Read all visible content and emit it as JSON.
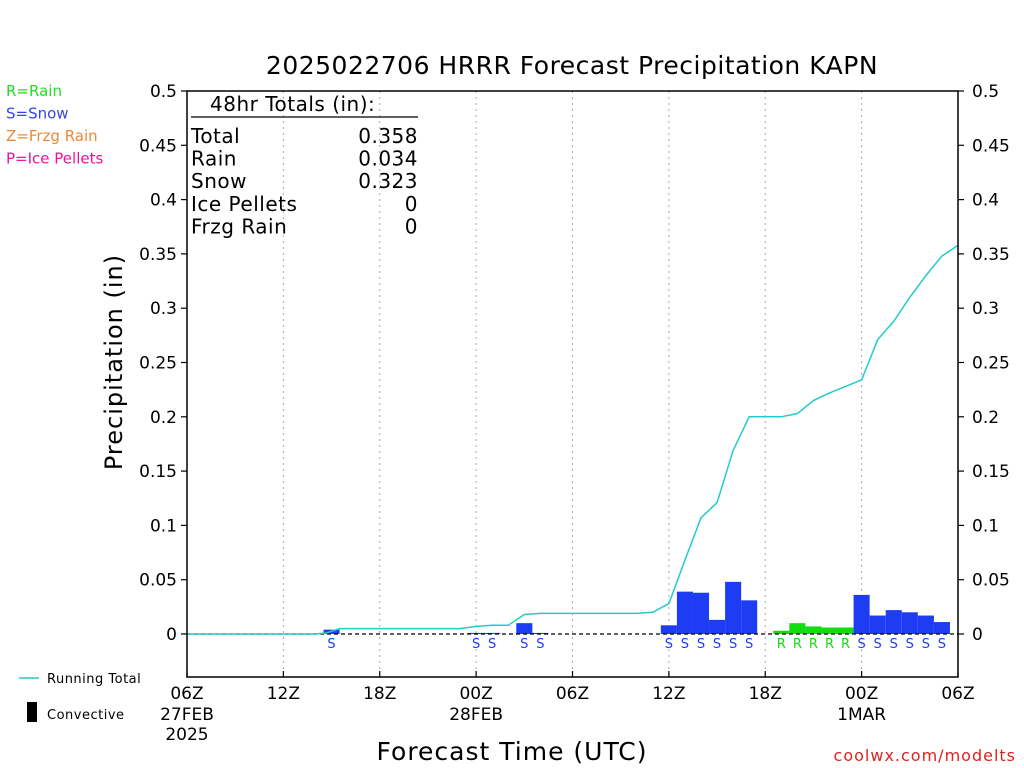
{
  "chart_data": {
    "type": "bar",
    "title": "2025022706 HRRR Forecast Precipitation KAPN",
    "xlabel": "Forecast Time (UTC)",
    "ylabel": "Precipitation (in)",
    "ylim": [
      -0.04,
      0.5
    ],
    "y_ticks": [
      0,
      0.05,
      0.1,
      0.15,
      0.2,
      0.25,
      0.3,
      0.35,
      0.4,
      0.45,
      0.5
    ],
    "y_tick_labels": [
      "0",
      "0.05",
      "0.1",
      "0.15",
      "0.2",
      "0.25",
      "0.3",
      "0.35",
      "0.4",
      "0.45",
      "0.5"
    ],
    "x_range_hours": [
      0,
      48
    ],
    "x_ticks": [
      {
        "hour": 0,
        "label": "06Z",
        "date": "27FEB",
        "year": "2025"
      },
      {
        "hour": 6,
        "label": "12Z",
        "date": "",
        "year": ""
      },
      {
        "hour": 12,
        "label": "18Z",
        "date": "",
        "year": ""
      },
      {
        "hour": 18,
        "label": "00Z",
        "date": "28FEB",
        "year": ""
      },
      {
        "hour": 24,
        "label": "06Z",
        "date": "",
        "year": ""
      },
      {
        "hour": 30,
        "label": "12Z",
        "date": "",
        "year": ""
      },
      {
        "hour": 36,
        "label": "18Z",
        "date": "",
        "year": ""
      },
      {
        "hour": 42,
        "label": "00Z",
        "date": "1MAR",
        "year": ""
      },
      {
        "hour": 48,
        "label": "06Z",
        "date": "",
        "year": ""
      }
    ],
    "grid": "vertical dotted at each 6 hours",
    "bars": [
      {
        "hour": 9,
        "value": 0.004,
        "type": "S"
      },
      {
        "hour": 18,
        "value": 0.001,
        "type": "S"
      },
      {
        "hour": 19,
        "value": 0.001,
        "type": "S"
      },
      {
        "hour": 21,
        "value": 0.01,
        "type": "S"
      },
      {
        "hour": 22,
        "value": 0.001,
        "type": "S"
      },
      {
        "hour": 30,
        "value": 0.008,
        "type": "S"
      },
      {
        "hour": 31,
        "value": 0.039,
        "type": "S"
      },
      {
        "hour": 32,
        "value": 0.038,
        "type": "S"
      },
      {
        "hour": 33,
        "value": 0.013,
        "type": "S"
      },
      {
        "hour": 34,
        "value": 0.048,
        "type": "S"
      },
      {
        "hour": 35,
        "value": 0.031,
        "type": "S"
      },
      {
        "hour": 37,
        "value": 0.003,
        "type": "R"
      },
      {
        "hour": 38,
        "value": 0.01,
        "type": "R"
      },
      {
        "hour": 39,
        "value": 0.007,
        "type": "R"
      },
      {
        "hour": 40,
        "value": 0.006,
        "type": "R"
      },
      {
        "hour": 41,
        "value": 0.006,
        "type": "R"
      },
      {
        "hour": 42,
        "value": 0.036,
        "type": "S"
      },
      {
        "hour": 43,
        "value": 0.017,
        "type": "S"
      },
      {
        "hour": 44,
        "value": 0.022,
        "type": "S"
      },
      {
        "hour": 45,
        "value": 0.02,
        "type": "S"
      },
      {
        "hour": 46,
        "value": 0.017,
        "type": "S"
      },
      {
        "hour": 47,
        "value": 0.011,
        "type": "S"
      }
    ],
    "running_total": {
      "name": "Running Total",
      "x": [
        0,
        8,
        8.7,
        9.5,
        10,
        12,
        16,
        17,
        18,
        19,
        20,
        21,
        22,
        24,
        27,
        28,
        29,
        30,
        31,
        32,
        33,
        34,
        35,
        36,
        37,
        38,
        39,
        40,
        41,
        42,
        43,
        44,
        45,
        46,
        47,
        48
      ],
      "y": [
        0,
        0,
        0.001,
        0.005,
        0.005,
        0.005,
        0.005,
        0.005,
        0.007,
        0.008,
        0.008,
        0.018,
        0.019,
        0.019,
        0.019,
        0.019,
        0.02,
        0.028,
        0.068,
        0.107,
        0.121,
        0.169,
        0.2,
        0.2,
        0.2,
        0.203,
        0.215,
        0.222,
        0.228,
        0.234,
        0.271,
        0.288,
        0.31,
        0.33,
        0.348,
        0.358
      ]
    },
    "totals_box": {
      "heading": "48hr Totals (in):",
      "rows": [
        {
          "label": "Total",
          "value": "0.358"
        },
        {
          "label": "Rain",
          "value": "0.034"
        },
        {
          "label": "Snow",
          "value": "0.323"
        },
        {
          "label": "Ice Pellets",
          "value": "0"
        },
        {
          "label": "Frzg Rain",
          "value": "0"
        }
      ]
    },
    "legend_types": [
      {
        "text": "R=Rain",
        "color": "#22dd22"
      },
      {
        "text": "S=Snow",
        "color": "#3344ee"
      },
      {
        "text": "Z=Frzg Rain",
        "color": "#ee8833"
      },
      {
        "text": "P=Ice Pellets",
        "color": "#ee1199"
      }
    ],
    "legend_bottom": [
      {
        "text": "Running Total",
        "symbol": "line"
      },
      {
        "text": "Convective",
        "symbol": "bar"
      }
    ],
    "colors": {
      "snow": "#1f3cf5",
      "rain": "#11dd11",
      "running_total": "#22cccc",
      "axis": "#000000",
      "grid": "#aaaaaa"
    },
    "credit": "coolwx.com/modelts",
    "credit_color": "#dd2222"
  }
}
